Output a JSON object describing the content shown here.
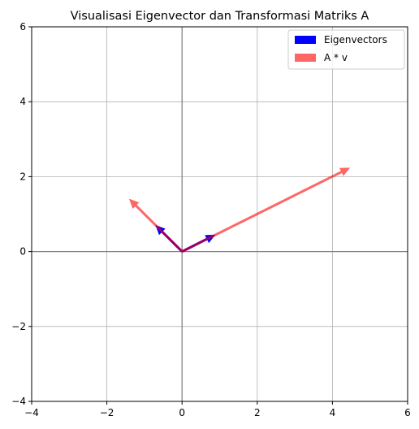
{
  "chart_data": {
    "type": "vector",
    "title": "Visualisasi Eigenvector dan Transformasi Matriks A",
    "xlabel": "",
    "ylabel": "",
    "xlim": [
      -4,
      6
    ],
    "ylim": [
      -4,
      6
    ],
    "xticks": [
      -4,
      -2,
      0,
      2,
      4,
      6
    ],
    "yticks": [
      -4,
      -2,
      0,
      2,
      4,
      6
    ],
    "grid": true,
    "legend_position": "top-right",
    "series": [
      {
        "name": "Eigenvectors",
        "color": "#0000ff",
        "alpha": 1.0,
        "vectors": [
          {
            "x": 0,
            "y": 0,
            "dx": 0.89,
            "dy": 0.45
          },
          {
            "x": 0,
            "y": 0,
            "dx": -0.71,
            "dy": 0.71
          }
        ]
      },
      {
        "name": "A * v",
        "color": "#ff0000",
        "alpha": 0.6,
        "vectors": [
          {
            "x": 0,
            "y": 0,
            "dx": 4.47,
            "dy": 2.24
          },
          {
            "x": 0,
            "y": 0,
            "dx": -1.41,
            "dy": 1.41
          }
        ]
      }
    ]
  }
}
